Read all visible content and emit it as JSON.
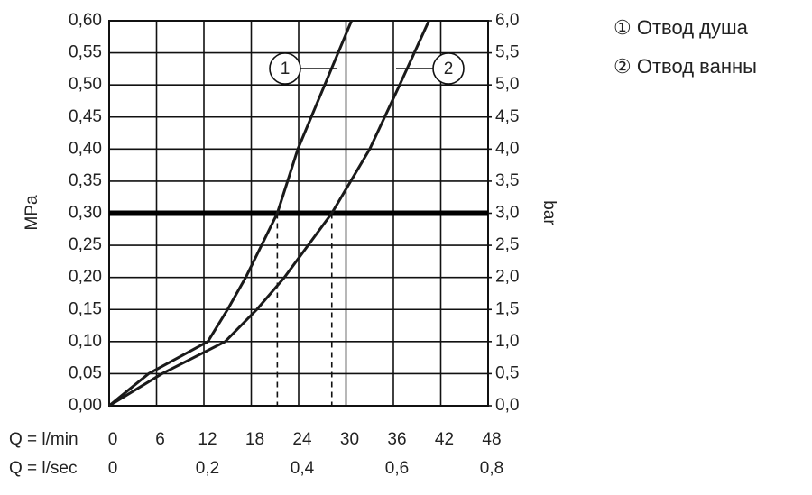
{
  "chart_data": {
    "type": "line",
    "ylabel": "MPa",
    "y2label": "bar",
    "xlabel": "Q = l/min",
    "x2label": "Q = l/sec",
    "xlim": [
      0,
      48
    ],
    "xticks": [
      0,
      6,
      12,
      18,
      24,
      30,
      36,
      42,
      48
    ],
    "x2lim": [
      0,
      0.8
    ],
    "x2ticks": [
      0,
      {
        "value": 0.2,
        "label": "0,2"
      },
      {
        "value": 0.4,
        "label": "0,4"
      },
      {
        "value": 0.6,
        "label": "0,6"
      },
      {
        "value": 0.8,
        "label": "0,8"
      }
    ],
    "ylim": [
      0,
      0.6
    ],
    "yticks": [
      {
        "value": 0,
        "label": "0,00"
      },
      {
        "value": 0.05,
        "label": "0,05"
      },
      {
        "value": 0.1,
        "label": "0,10"
      },
      {
        "value": 0.15,
        "label": "0,15"
      },
      {
        "value": 0.2,
        "label": "0,20"
      },
      {
        "value": 0.25,
        "label": "0,25"
      },
      {
        "value": 0.3,
        "label": "0,30"
      },
      {
        "value": 0.35,
        "label": "0,35"
      },
      {
        "value": 0.4,
        "label": "0,40"
      },
      {
        "value": 0.45,
        "label": "0,45"
      },
      {
        "value": 0.5,
        "label": "0,50"
      },
      {
        "value": 0.55,
        "label": "0,55"
      },
      {
        "value": 0.6,
        "label": "0,60"
      }
    ],
    "y2lim": [
      0,
      6
    ],
    "y2ticks": [
      {
        "value": 0,
        "label": "0,0"
      },
      {
        "value": 0.5,
        "label": "0,5"
      },
      {
        "value": 1,
        "label": "1,0"
      },
      {
        "value": 1.5,
        "label": "1,5"
      },
      {
        "value": 2,
        "label": "2,0"
      },
      {
        "value": 2.5,
        "label": "2,5"
      },
      {
        "value": 3,
        "label": "3,0"
      },
      {
        "value": 3.5,
        "label": "3,5"
      },
      {
        "value": 4,
        "label": "4,0"
      },
      {
        "value": 4.5,
        "label": "4,5"
      },
      {
        "value": 5,
        "label": "5,0"
      },
      {
        "value": 5.5,
        "label": "5,5"
      },
      {
        "value": 6,
        "label": "6,0"
      }
    ],
    "grid": true,
    "hline": 0.3,
    "series": [
      {
        "name": "① Отвод душа",
        "callout": "1",
        "color": "#1a1a1a",
        "x": [
          0,
          5,
          12.5,
          15,
          17.3,
          21.3,
          23.9,
          27.3,
          30.7
        ],
        "values": [
          0,
          0.05,
          0.1,
          0.15,
          0.2,
          0.3,
          0.4,
          0.5,
          0.6
        ]
      },
      {
        "name": "② Отвод ванны",
        "callout": "2",
        "color": "#1a1a1a",
        "x": [
          0,
          6.7,
          14.7,
          18.7,
          22.2,
          28.2,
          33,
          36.8,
          40.5
        ],
        "values": [
          0,
          0.05,
          0.1,
          0.15,
          0.2,
          0.3,
          0.4,
          0.5,
          0.6
        ]
      }
    ]
  }
}
